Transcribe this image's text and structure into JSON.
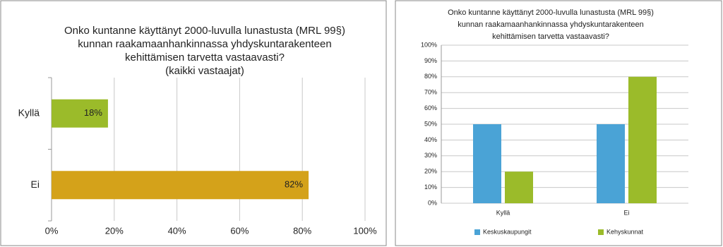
{
  "chart_data": [
    {
      "type": "hbar",
      "title": [
        "Onko kuntanne käyttänyt 2000-luvulla lunastusta (MRL 99§)",
        "kunnan raakamaanhankinnassa yhdyskuntarakenteen",
        "kehittämisen tarvetta vastaavasti?",
        "(kaikki vastaajat)"
      ],
      "categories": [
        "Kyllä",
        "Ei"
      ],
      "values": [
        18,
        82
      ],
      "value_labels": [
        "18%",
        "82%"
      ],
      "colors": [
        "#9bbb2a",
        "#d4a21a"
      ],
      "xlim": [
        0,
        100
      ],
      "xticks": [
        {
          "value": 0,
          "label": "0%"
        },
        {
          "value": 20,
          "label": "20%"
        },
        {
          "value": 40,
          "label": "40%"
        },
        {
          "value": 60,
          "label": "60%"
        },
        {
          "value": 80,
          "label": "80%"
        },
        {
          "value": 100,
          "label": "100%"
        }
      ],
      "grid": true
    },
    {
      "type": "bar",
      "title": [
        "Onko kuntanne käyttänyt 2000-luvulla lunastusta (MRL 99§)",
        "kunnan raakamaanhankinnassa yhdyskuntarakenteen",
        "kehittämisen tarvetta vastaavasti?"
      ],
      "categories": [
        "Kyllä",
        "Ei"
      ],
      "series": [
        {
          "name": "Keskuskaupungit",
          "color": "#4aa3d6",
          "values": [
            50,
            50
          ]
        },
        {
          "name": "Kehyskunnat",
          "color": "#9bbb2a",
          "values": [
            20,
            80
          ]
        }
      ],
      "ylim": [
        0,
        100
      ],
      "yticks": [
        {
          "value": 0,
          "label": "0%"
        },
        {
          "value": 10,
          "label": "10%"
        },
        {
          "value": 20,
          "label": "20%"
        },
        {
          "value": 30,
          "label": "30%"
        },
        {
          "value": 40,
          "label": "40%"
        },
        {
          "value": 50,
          "label": "50%"
        },
        {
          "value": 60,
          "label": "60%"
        },
        {
          "value": 70,
          "label": "70%"
        },
        {
          "value": 80,
          "label": "80%"
        },
        {
          "value": 90,
          "label": "90%"
        },
        {
          "value": 100,
          "label": "100%"
        }
      ],
      "grid": true,
      "legend": "bottom"
    }
  ]
}
